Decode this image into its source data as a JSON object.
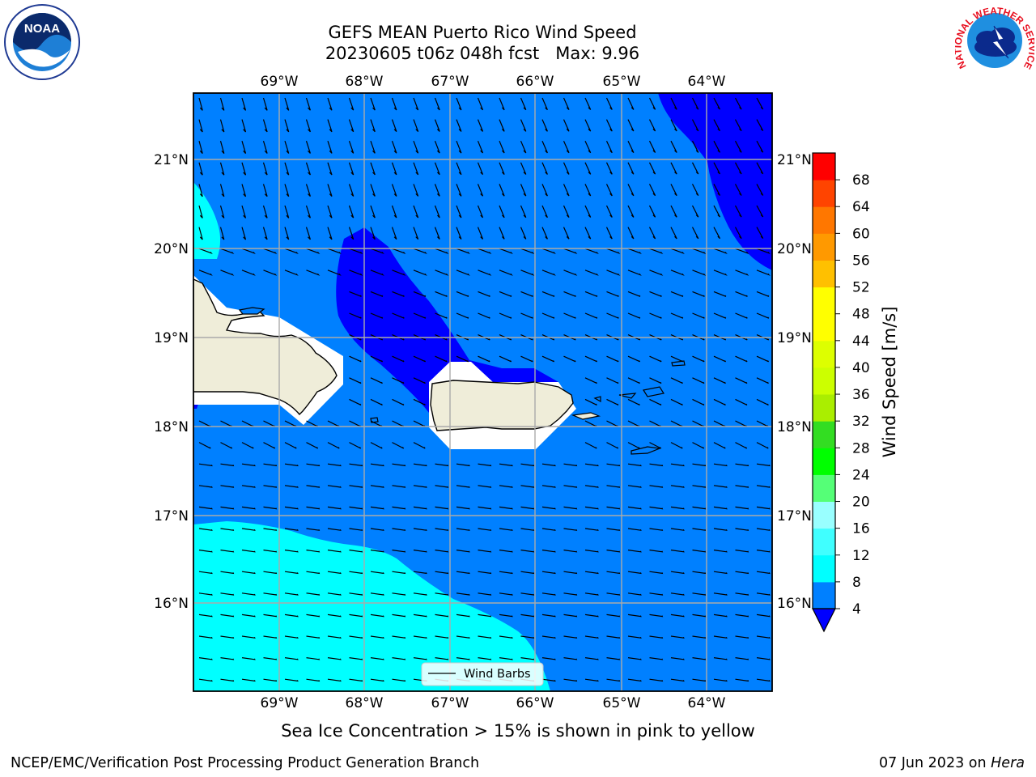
{
  "header": {
    "title_line1": "GEFS MEAN Puerto Rico Wind Speed",
    "title_line2": "20230605 t06z 048h fcst   Max: 9.96"
  },
  "map": {
    "lon_labels": [
      "69°W",
      "68°W",
      "67°W",
      "66°W",
      "65°W",
      "64°W"
    ],
    "lat_labels": [
      "21°N",
      "20°N",
      "19°N",
      "18°N",
      "17°N",
      "16°N"
    ],
    "legend_label": "Wind Barbs",
    "fill_colors": {
      "land": "#efedd9",
      "ocean_4_8": "#0080ff",
      "ocean_below_4": "#0000ff",
      "ocean_8_12": "#00ffff",
      "no_data": "#ffffff"
    }
  },
  "colorbar": {
    "label": "Wind Speed [m/s]",
    "ticks": [
      "4",
      "8",
      "12",
      "16",
      "20",
      "24",
      "28",
      "32",
      "36",
      "40",
      "44",
      "48",
      "52",
      "56",
      "60",
      "64",
      "68"
    ],
    "colors": [
      "#0080ff",
      "#00ffff",
      "#40ffff",
      "#99ffff",
      "#55ff77",
      "#00ff00",
      "#33dd22",
      "#aaee00",
      "#ccff00",
      "#ddff00",
      "#ffff00",
      "#ffff00",
      "#ffc000",
      "#ff9900",
      "#ff7700",
      "#ff4400",
      "#ff0000"
    ],
    "under_color": "#0000ff"
  },
  "caption": "Sea Ice Concentration > 15% is shown in pink to yellow",
  "footer": {
    "left": "NCEP/EMC/Verification Post Processing Product Generation Branch",
    "date": "07 Jun 2023 on ",
    "machine": "Hera"
  },
  "logos": {
    "noaa_text": "NOAA",
    "nws_text": "NATIONAL WEATHER SERVICE"
  }
}
